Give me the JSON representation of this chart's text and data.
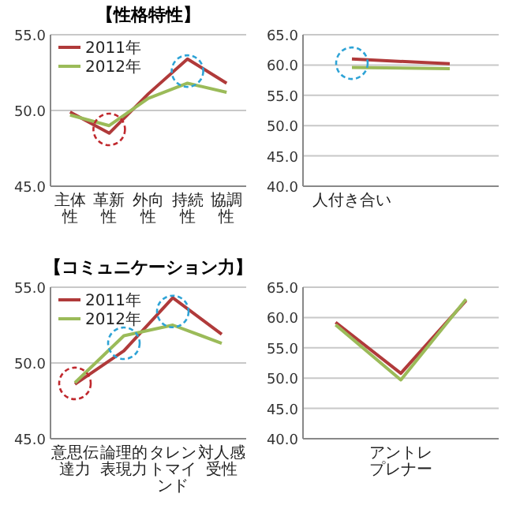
{
  "chart_data": [
    {
      "type": "line",
      "title": "【性格特性】",
      "categories": [
        "主体性",
        "革新性",
        "外向性",
        "持続性",
        "協調性"
      ],
      "series": [
        {
          "name": "2011年",
          "color": "#b03a3a",
          "values": [
            49.9,
            48.5,
            51.1,
            53.4,
            51.8
          ]
        },
        {
          "name": "2012年",
          "color": "#9bbb59",
          "values": [
            49.7,
            49.0,
            50.8,
            51.8,
            51.2
          ]
        }
      ],
      "ylim": [
        45,
        55
      ],
      "yticks": [
        {
          "value": 45,
          "label": "45.0"
        },
        {
          "value": 50,
          "label": "50.0"
        },
        {
          "value": 55,
          "label": "55.0"
        }
      ],
      "grid": "y",
      "legend": "top left"
    },
    {
      "type": "line",
      "categories": [
        "人付き合い",
        null
      ],
      "series": [
        {
          "color": "#b03a3a",
          "values": [
            61.0,
            60.2
          ]
        },
        {
          "color": "#9bbb59",
          "values": [
            59.6,
            59.4
          ]
        }
      ],
      "ylim": [
        40,
        65
      ],
      "yticks": [
        {
          "value": 40,
          "label": "40.0"
        },
        {
          "value": 45,
          "label": "45.0"
        },
        {
          "value": 50,
          "label": "50.0"
        },
        {
          "value": 55,
          "label": "55.0"
        },
        {
          "value": 60,
          "label": "60.0"
        },
        {
          "value": 65,
          "label": "65.0"
        }
      ],
      "grid": "y"
    },
    {
      "type": "line",
      "title": "【コミュニケーション力】",
      "categories": [
        "意思伝達力",
        "論理的表現力",
        "タレントマインド",
        "対人感受性"
      ],
      "series": [
        {
          "name": "2011年",
          "color": "#b03a3a",
          "values": [
            48.6,
            50.8,
            54.3,
            51.9
          ]
        },
        {
          "name": "2012年",
          "color": "#9bbb59",
          "values": [
            48.7,
            51.8,
            52.5,
            51.3
          ]
        }
      ],
      "ylim": [
        45,
        55
      ],
      "yticks": [
        {
          "value": 45,
          "label": "45.0"
        },
        {
          "value": 50,
          "label": "50.0"
        },
        {
          "value": 55,
          "label": "55.0"
        }
      ],
      "grid": "y",
      "legend": "top left"
    },
    {
      "type": "line",
      "categories": [
        null,
        "アントレプレナー",
        null
      ],
      "series": [
        {
          "color": "#b03a3a",
          "values": [
            59.2,
            50.8,
            62.8
          ]
        },
        {
          "color": "#9bbb59",
          "values": [
            58.8,
            49.7,
            63.0
          ]
        }
      ],
      "ylim": [
        40,
        65
      ],
      "yticks": [
        {
          "value": 40,
          "label": "40.0"
        },
        {
          "value": 45,
          "label": "45.0"
        },
        {
          "value": 50,
          "label": "50.0"
        },
        {
          "value": 55,
          "label": "55.0"
        },
        {
          "value": 60,
          "label": "60.0"
        },
        {
          "value": 65,
          "label": "65.0"
        }
      ],
      "grid": "y"
    }
  ]
}
